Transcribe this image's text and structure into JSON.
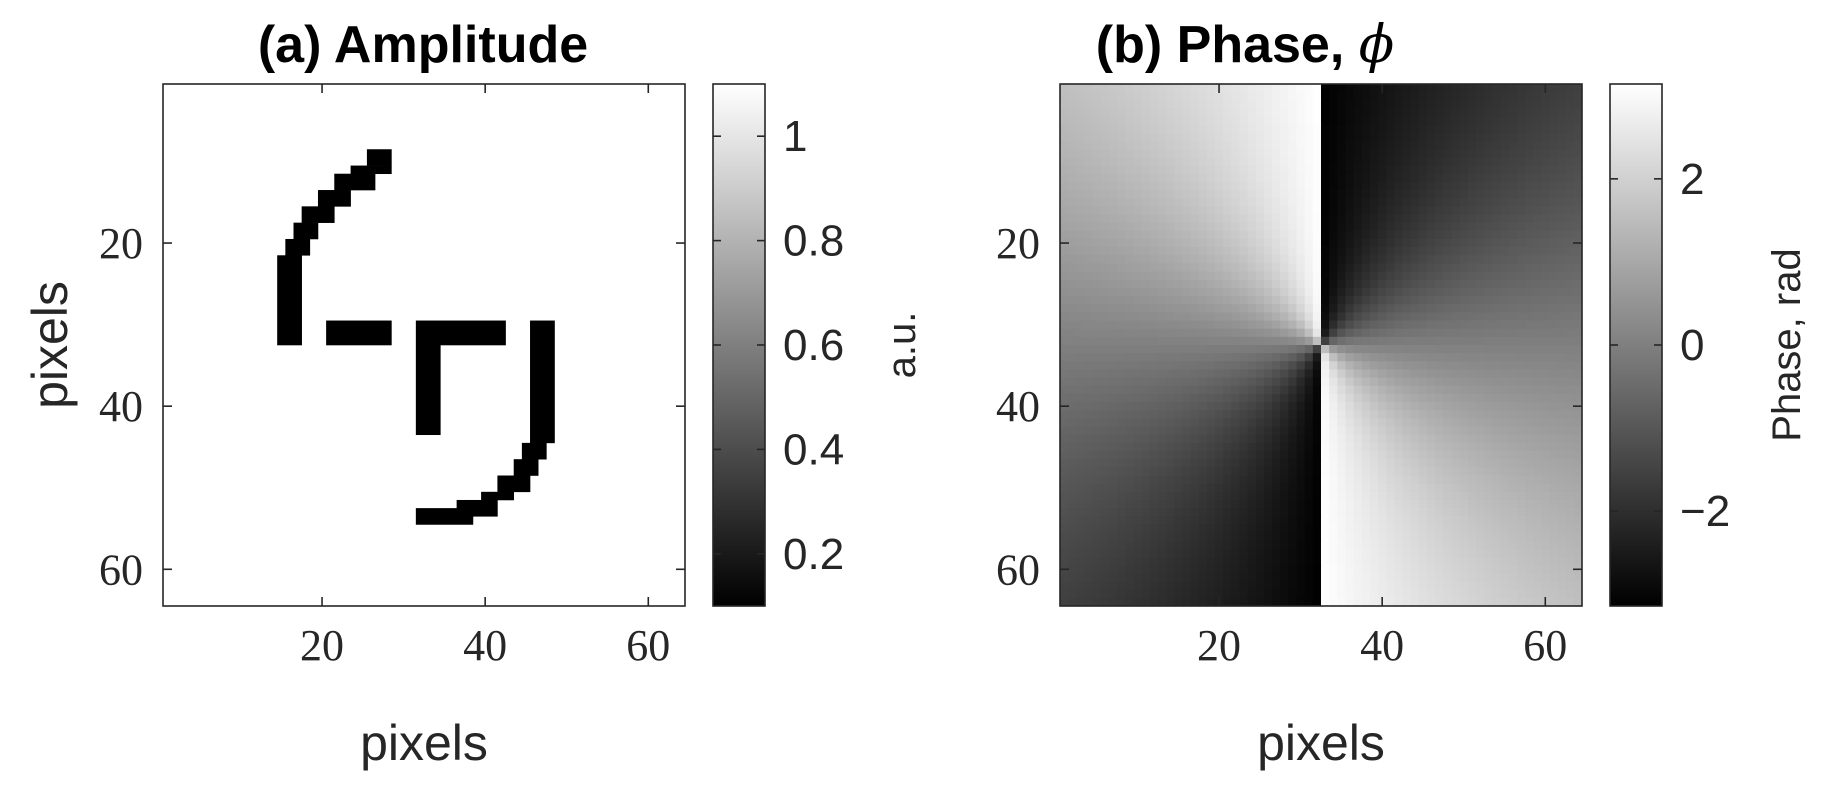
{
  "chart_data": [
    {
      "type": "heatmap",
      "title": "(a) Amplitude",
      "xlabel": "pixels",
      "ylabel": "pixels",
      "colorbar_label": "a.u.",
      "colormap": "gray",
      "grid_size": 64,
      "x_ticks": [
        20,
        40,
        60
      ],
      "y_ticks": [
        20,
        40,
        60
      ],
      "y_axis_direction": "top-to-bottom",
      "clim": [
        0.1,
        1.1
      ],
      "colorbar_ticks": [
        0.2,
        0.4,
        0.6,
        0.8,
        1
      ],
      "colorbar_tick_labels": [
        "0.2",
        "0.4",
        "0.6",
        "0.8",
        "1"
      ],
      "background_value": 1,
      "foreground_value": 0,
      "description_shape": "black C-shaped arc with L bracket and bar on white background",
      "black_cells": [
        {
          "x": [
            26,
            28
          ],
          "y": [
            9,
            10
          ]
        },
        {
          "x": [
            24,
            28
          ],
          "y": [
            11,
            11
          ]
        },
        {
          "x": [
            22,
            26
          ],
          "y": [
            12,
            13
          ]
        },
        {
          "x": [
            20,
            23
          ],
          "y": [
            14,
            15
          ]
        },
        {
          "x": [
            18,
            21
          ],
          "y": [
            16,
            17
          ]
        },
        {
          "x": [
            17,
            19
          ],
          "y": [
            18,
            19
          ]
        },
        {
          "x": [
            16,
            18
          ],
          "y": [
            20,
            21
          ]
        },
        {
          "x": [
            15,
            17
          ],
          "y": [
            22,
            32
          ]
        },
        {
          "x": [
            21,
            28
          ],
          "y": [
            30,
            32
          ]
        },
        {
          "x": [
            32,
            42
          ],
          "y": [
            30,
            32
          ]
        },
        {
          "x": [
            32,
            34
          ],
          "y": [
            33,
            43
          ]
        },
        {
          "x": [
            46,
            48
          ],
          "y": [
            30,
            44
          ]
        },
        {
          "x": [
            45,
            47
          ],
          "y": [
            45,
            46
          ]
        },
        {
          "x": [
            44,
            46
          ],
          "y": [
            47,
            48
          ]
        },
        {
          "x": [
            42,
            45
          ],
          "y": [
            49,
            50
          ]
        },
        {
          "x": [
            40,
            43
          ],
          "y": [
            51,
            51
          ]
        },
        {
          "x": [
            37,
            41
          ],
          "y": [
            52,
            53
          ]
        },
        {
          "x": [
            32,
            38
          ],
          "y": [
            53,
            54
          ]
        }
      ]
    },
    {
      "type": "heatmap",
      "title": "(b) Phase,",
      "title_symbol": "ϕ",
      "xlabel": "pixels",
      "ylabel": "",
      "colorbar_label": "Phase, rad",
      "colormap": "gray",
      "grid_size": 64,
      "x_ticks": [
        20,
        40,
        60
      ],
      "y_ticks": [
        20,
        40,
        60
      ],
      "y_axis_direction": "top-to-bottom",
      "clim": [
        -3.1416,
        3.1416
      ],
      "colorbar_ticks": [
        -2,
        0,
        2
      ],
      "colorbar_tick_labels": [
        "−2",
        "0",
        "2"
      ],
      "center": [
        32.5,
        32.5
      ],
      "phase_function": "wrap(2 * atan2(y - center, x - center))"
    }
  ]
}
